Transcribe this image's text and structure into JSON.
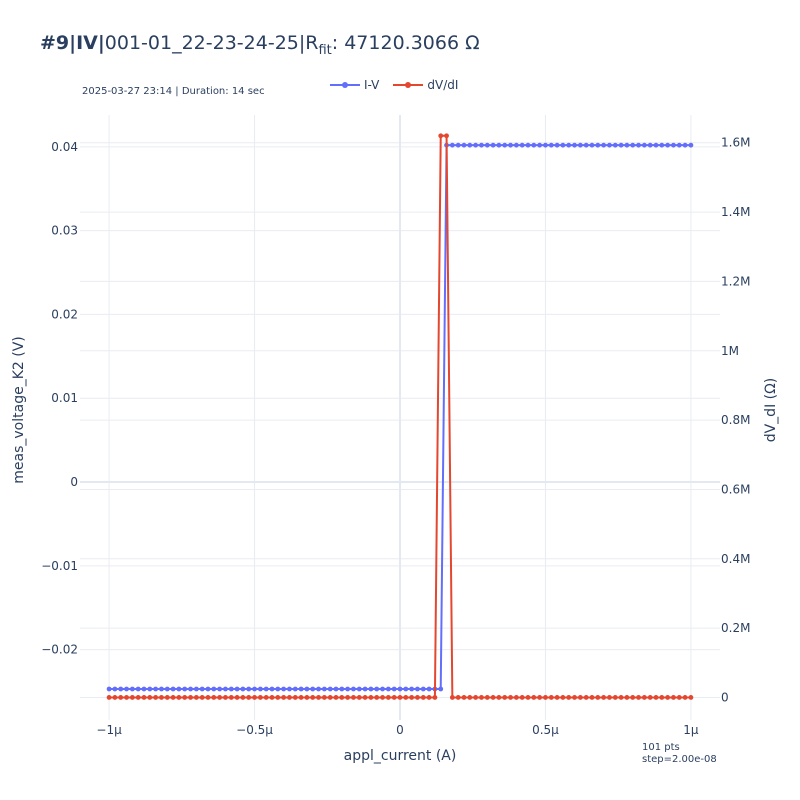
{
  "title": {
    "prefix": "#9|IV|",
    "device": "001-01_22-23-24-25|R",
    "sub": "fit",
    "suffix": ": 47120.3066 Ω"
  },
  "subtitle": "2025-03-27 23:14 | Duration: 14 sec",
  "footnote": {
    "line1": "101 pts",
    "line2": "step=2.00e-08"
  },
  "colors": {
    "iv": "#636efa",
    "dvdi": "#e4472f",
    "grid": "#e9ecf3",
    "text": "#2a3f5f"
  },
  "chart_data": {
    "type": "line",
    "xlabel": "appl_current (A)",
    "ylabel": "meas_voltage_K2 (V)",
    "y2label": "dV_dI (Ω)",
    "xlim": [
      -1.1e-06,
      1.1e-06
    ],
    "ylim": [
      -0.0284,
      0.0438
    ],
    "y2lim": [
      -65000,
      1680000
    ],
    "x_ticks": [
      -1e-06,
      -5e-07,
      0,
      5e-07,
      1e-06
    ],
    "x_tick_labels": [
      "−1μ",
      "−0.5μ",
      "0",
      "0.5μ",
      "1μ"
    ],
    "y_ticks": [
      -0.02,
      -0.01,
      0,
      0.01,
      0.02,
      0.03,
      0.04
    ],
    "y_tick_labels": [
      "−0.02",
      "−0.01",
      "0",
      "0.01",
      "0.02",
      "0.03",
      "0.04"
    ],
    "y2_ticks": [
      0,
      200000,
      400000,
      600000,
      800000,
      1000000,
      1200000,
      1400000,
      1600000
    ],
    "y2_tick_labels": [
      "0",
      "0.2M",
      "0.4M",
      "0.6M",
      "0.8M",
      "1M",
      "1.2M",
      "1.4M",
      "1.6M"
    ],
    "grid": true,
    "legend_position": "top-center",
    "series": [
      {
        "name": "I-V",
        "axis": "y",
        "x_start": -1e-06,
        "x_step": 2e-08,
        "count": 101,
        "rule": "y = -0.0247 for x <= 1.4e-7, y = 0.0402 for x > 1.4e-7"
      },
      {
        "name": "dV/dI",
        "axis": "y2",
        "x_start": -1e-06,
        "x_step": 2e-08,
        "count": 101,
        "rule": "dV/dI = 0 except 1620000 at x = 1.4e-7 and x = 1.6e-7"
      }
    ]
  }
}
